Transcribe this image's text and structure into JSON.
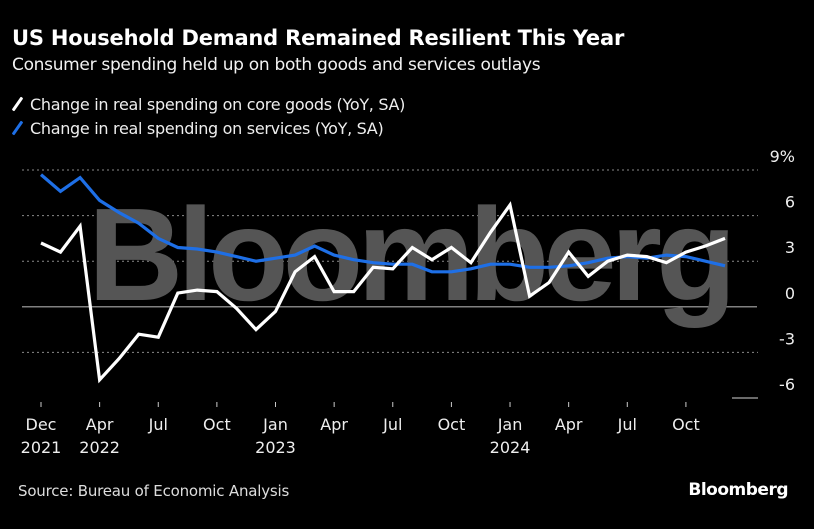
{
  "header": {
    "title": "US Household Demand Remained Resilient This Year",
    "subtitle": "Consumer spending held up on both goods and services outlays"
  },
  "watermark": "Bloomberg",
  "footer": {
    "source": "Source: Bureau of Economic Analysis",
    "brand": "Bloomberg"
  },
  "colors": {
    "background": "#000000",
    "goods": "#ffffff",
    "services": "#1e6fe6",
    "grid": "#8a8a8a",
    "watermark": "#555555"
  },
  "chart_data": {
    "type": "line",
    "title": "US Household Demand Remained Resilient This Year",
    "subtitle": "Consumer spending held up on both goods and services outlays",
    "xlabel": "",
    "ylabel": "",
    "y_unit": "%",
    "ylim": [
      -6,
      9
    ],
    "yticks": [
      -6,
      -3,
      0,
      3,
      6,
      9
    ],
    "ytick_labels": [
      "-6",
      "-3",
      "0",
      "3",
      "6",
      "9%"
    ],
    "grid": true,
    "legend_position": "top-left",
    "x": [
      "Dec 2021",
      "Jan 2022",
      "Feb 2022",
      "Mar 2022",
      "Apr 2022",
      "May 2022",
      "Jun 2022",
      "Jul 2022",
      "Aug 2022",
      "Sep 2022",
      "Oct 2022",
      "Nov 2022",
      "Dec 2022",
      "Jan 2023",
      "Feb 2023",
      "Mar 2023",
      "Apr 2023",
      "May 2023",
      "Jun 2023",
      "Jul 2023",
      "Aug 2023",
      "Sep 2023",
      "Oct 2023",
      "Nov 2023",
      "Dec 2023",
      "Jan 2024",
      "Feb 2024",
      "Mar 2024",
      "Apr 2024",
      "May 2024",
      "Jun 2024",
      "Jul 2024",
      "Aug 2024",
      "Sep 2024",
      "Oct 2024",
      "Nov 2024"
    ],
    "xticks": [
      {
        "index": 0,
        "label": "Dec",
        "year": "2021"
      },
      {
        "index": 3,
        "label": "Apr",
        "year": "2022"
      },
      {
        "index": 6,
        "label": "Jul",
        "year": ""
      },
      {
        "index": 9,
        "label": "Oct",
        "year": ""
      },
      {
        "index": 12,
        "label": "Jan",
        "year": "2023"
      },
      {
        "index": 15,
        "label": "Apr",
        "year": ""
      },
      {
        "index": 18,
        "label": "Jul",
        "year": ""
      },
      {
        "index": 21,
        "label": "Oct",
        "year": ""
      },
      {
        "index": 24,
        "label": "Jan",
        "year": "2024"
      },
      {
        "index": 27,
        "label": "Apr",
        "year": ""
      },
      {
        "index": 30,
        "label": "Jul",
        "year": ""
      },
      {
        "index": 33,
        "label": "Oct",
        "year": ""
      }
    ],
    "series": [
      {
        "name": "Change in real spending on core goods (YoY, SA)",
        "color": "#ffffff",
        "values": [
          4.2,
          3.6,
          5.3,
          -4.8,
          -3.4,
          -1.8,
          -2.0,
          0.9,
          1.1,
          1.0,
          -0.1,
          -1.5,
          -0.3,
          2.3,
          3.3,
          1.0,
          1.0,
          2.6,
          2.5,
          3.9,
          3.1,
          3.9,
          2.9,
          4.9,
          6.7,
          0.7,
          1.6,
          3.6,
          2.0,
          3.0,
          3.4,
          3.3,
          2.9,
          3.6,
          4.0,
          4.5
        ]
      },
      {
        "name": "Change in real spending on services (YoY, SA)",
        "color": "#1e6fe6",
        "values": [
          8.7,
          7.6,
          8.5,
          7.0,
          6.2,
          5.5,
          4.5,
          3.9,
          3.8,
          3.6,
          3.3,
          3.0,
          3.2,
          3.4,
          4.0,
          3.4,
          3.1,
          2.9,
          2.8,
          2.8,
          2.3,
          2.3,
          2.5,
          2.8,
          2.8,
          2.6,
          2.6,
          2.7,
          2.9,
          3.2,
          3.3,
          3.2,
          3.4,
          3.3,
          3.0,
          2.7
        ]
      }
    ]
  }
}
